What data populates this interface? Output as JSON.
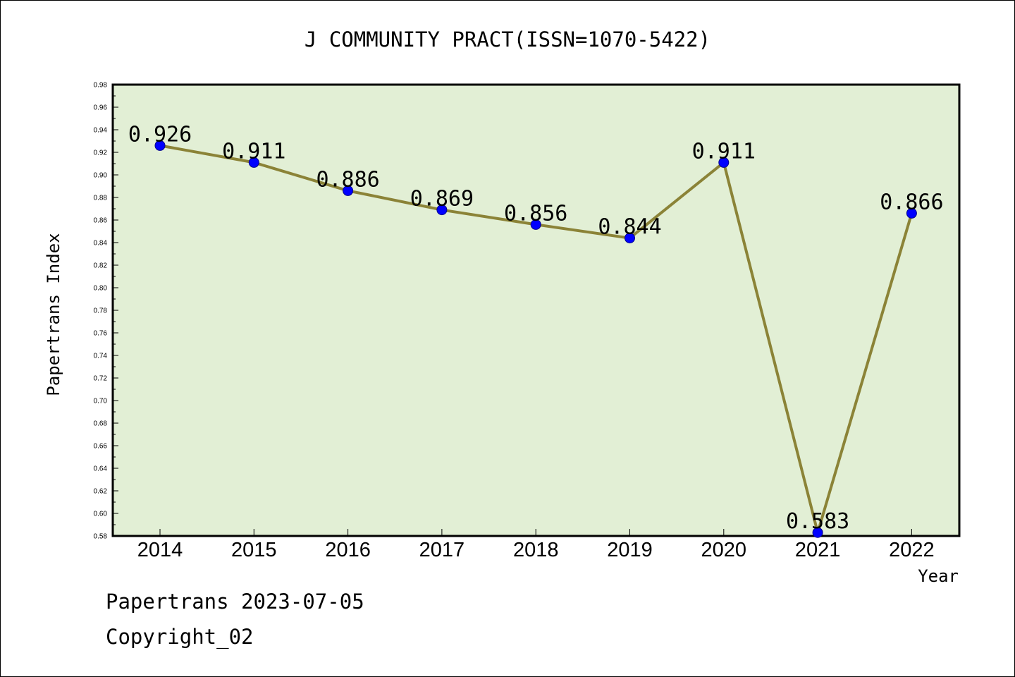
{
  "chart_data": {
    "type": "line",
    "title": "J COMMUNITY PRACT(ISSN=1070-5422)",
    "xlabel": "Year",
    "ylabel": "Papertrans Index",
    "categories": [
      "2014",
      "2015",
      "2016",
      "2017",
      "2018",
      "2019",
      "2020",
      "2021",
      "2022"
    ],
    "series": [
      {
        "values": [
          0.926,
          0.911,
          0.886,
          0.869,
          0.856,
          0.844,
          0.911,
          0.583,
          0.866
        ]
      }
    ],
    "data_labels": [
      "0.926",
      "0.911",
      "0.886",
      "0.869",
      "0.856",
      "0.844",
      "0.911",
      "0.583",
      "0.866"
    ],
    "ylim": [
      0.58,
      0.98
    ],
    "yticks": [
      "0.58",
      "0.60",
      "0.62",
      "0.64",
      "0.66",
      "0.68",
      "0.70",
      "0.72",
      "0.74",
      "0.76",
      "0.78",
      "0.80",
      "0.82",
      "0.84",
      "0.86",
      "0.88",
      "0.90",
      "0.92",
      "0.94",
      "0.96",
      "0.98"
    ],
    "grid": false,
    "colors": {
      "plot_background": "#e2efd5",
      "line": "#8b8337",
      "marker": "#0000ff"
    }
  },
  "footer": {
    "line1": "Papertrans 2023-07-05",
    "line2": "Copyright_02"
  }
}
